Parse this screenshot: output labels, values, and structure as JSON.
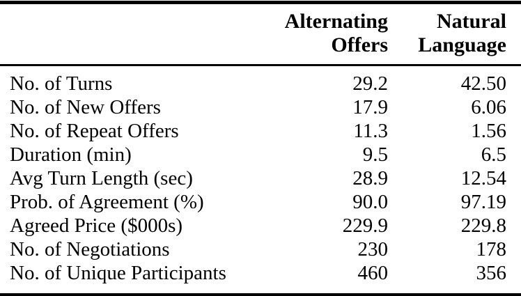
{
  "page": {
    "background_color": "#ffffff",
    "text_color": "#000000",
    "rule_color": "#000000"
  },
  "table": {
    "header": {
      "columns": [
        {
          "id": "alternating_offers",
          "line1": "Alternating",
          "line2": "Offers"
        },
        {
          "id": "natural_language",
          "line1": "Natural",
          "line2": "Language"
        }
      ]
    },
    "rows": [
      {
        "label": "No. of Turns",
        "alternating_offers": "29.2",
        "natural_language": "42.50"
      },
      {
        "label": "No. of New Offers",
        "alternating_offers": "17.9",
        "natural_language": "6.06"
      },
      {
        "label": "No. of Repeat Offers",
        "alternating_offers": "11.3",
        "natural_language": "1.56"
      },
      {
        "label": "Duration (min)",
        "alternating_offers": "9.5",
        "natural_language": "6.5"
      },
      {
        "label": "Avg Turn Length (sec)",
        "alternating_offers": "28.9",
        "natural_language": "12.54"
      },
      {
        "label": "Prob. of Agreement (%)",
        "alternating_offers": "90.0",
        "natural_language": "97.19"
      },
      {
        "label": "Agreed Price ($000s)",
        "alternating_offers": "229.9",
        "natural_language": "229.8"
      },
      {
        "label": "No. of Negotiations",
        "alternating_offers": "230",
        "natural_language": "178"
      },
      {
        "label": "No. of Unique Participants",
        "alternating_offers": "460",
        "natural_language": "356"
      }
    ]
  }
}
